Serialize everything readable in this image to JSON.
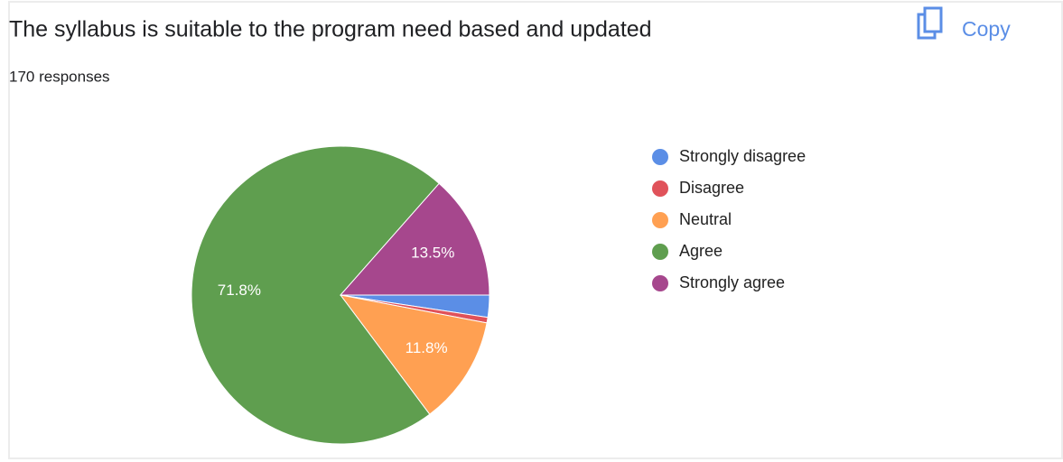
{
  "chart_data": {
    "type": "pie",
    "title": "The syllabus is suitable to the program need based and updated",
    "subtitle": "170 responses",
    "categories": [
      "Strongly disagree",
      "Disagree",
      "Neutral",
      "Agree",
      "Strongly agree"
    ],
    "values": [
      2.4,
      0.6,
      11.8,
      71.8,
      13.5
    ],
    "value_labels": [
      null,
      null,
      "11.8%",
      "71.8%",
      "13.5%"
    ],
    "colors": [
      "#5b8ee6",
      "#e0525a",
      "#ffa052",
      "#5f9e4f",
      "#a6478d"
    ],
    "legend": "right"
  },
  "copy_button": "Copy"
}
